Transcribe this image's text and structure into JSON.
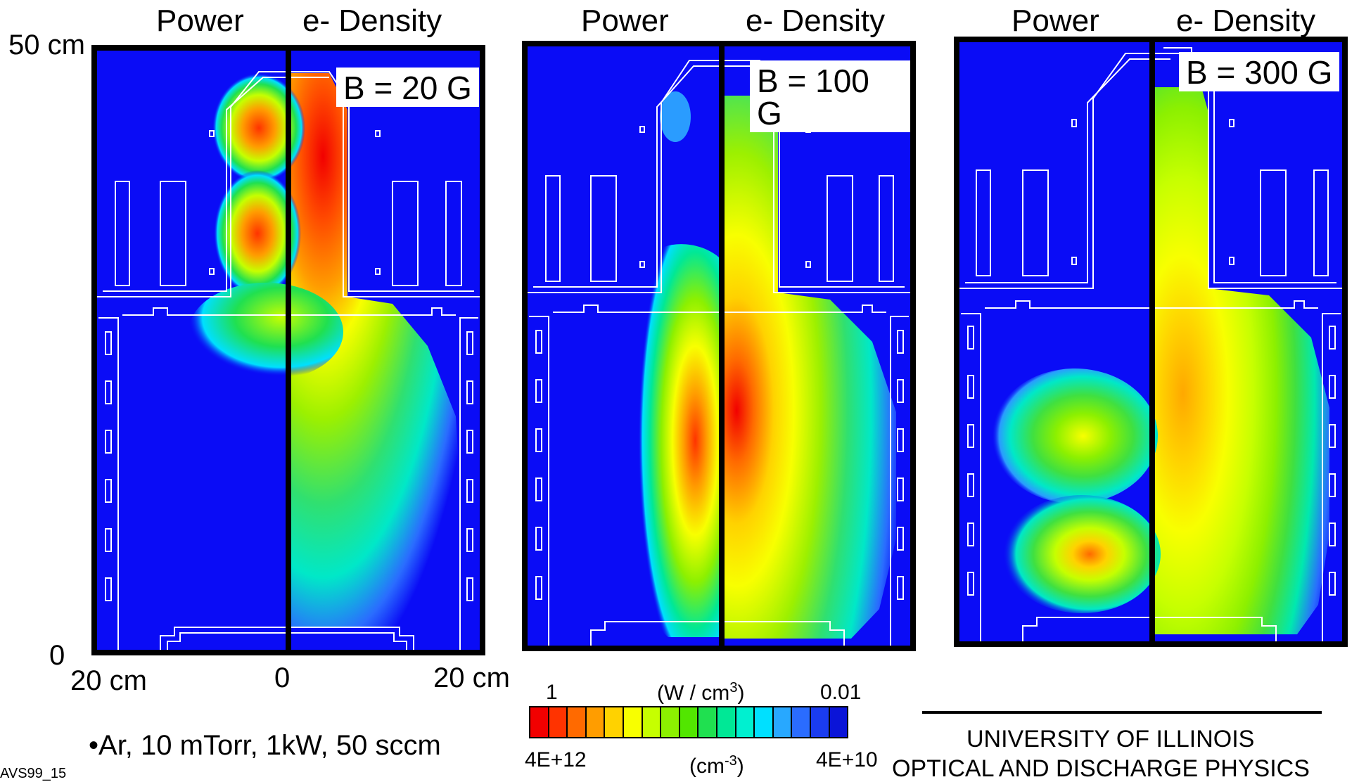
{
  "headers": {
    "p1_power": "Power",
    "p1_density": "e- Density",
    "p2_power": "Power",
    "p2_density": "e- Density",
    "p3_power": "Power",
    "p3_density": "e- Density"
  },
  "panels": [
    {
      "field": "B = 20 G"
    },
    {
      "field": "B = 100 G"
    },
    {
      "field": "B = 300 G"
    }
  ],
  "axis": {
    "y_top": "50 cm",
    "y_bottom": "0",
    "x_left": "20 cm",
    "x_center": "0",
    "x_right": "20 cm"
  },
  "conditions": "Ar, 10 mTorr, 1kW, 50 sccm",
  "slide_id": "AVS99_15",
  "colorbar": {
    "power_max": "1",
    "power_unit_prefix": "(W / cm",
    "power_unit_exp": "3",
    "power_unit_suffix": ")",
    "power_min": "0.01",
    "density_max": "4E+12",
    "density_unit_prefix": "(cm",
    "density_unit_exp": "-3",
    "density_unit_suffix": ")",
    "density_min": "4E+10",
    "colors": [
      "#f20000",
      "#ff3300",
      "#ff6a00",
      "#ff9d00",
      "#ffd200",
      "#f8ff00",
      "#c6ff00",
      "#8cf000",
      "#52e600",
      "#20e050",
      "#00e896",
      "#00f0d0",
      "#00e0ff",
      "#28a8ff",
      "#2a6cff",
      "#1a3cf0",
      "#0a14d8"
    ]
  },
  "institution": {
    "line1": "UNIVERSITY OF ILLINOIS",
    "line2": "OPTICAL AND DISCHARGE PHYSICS"
  }
}
